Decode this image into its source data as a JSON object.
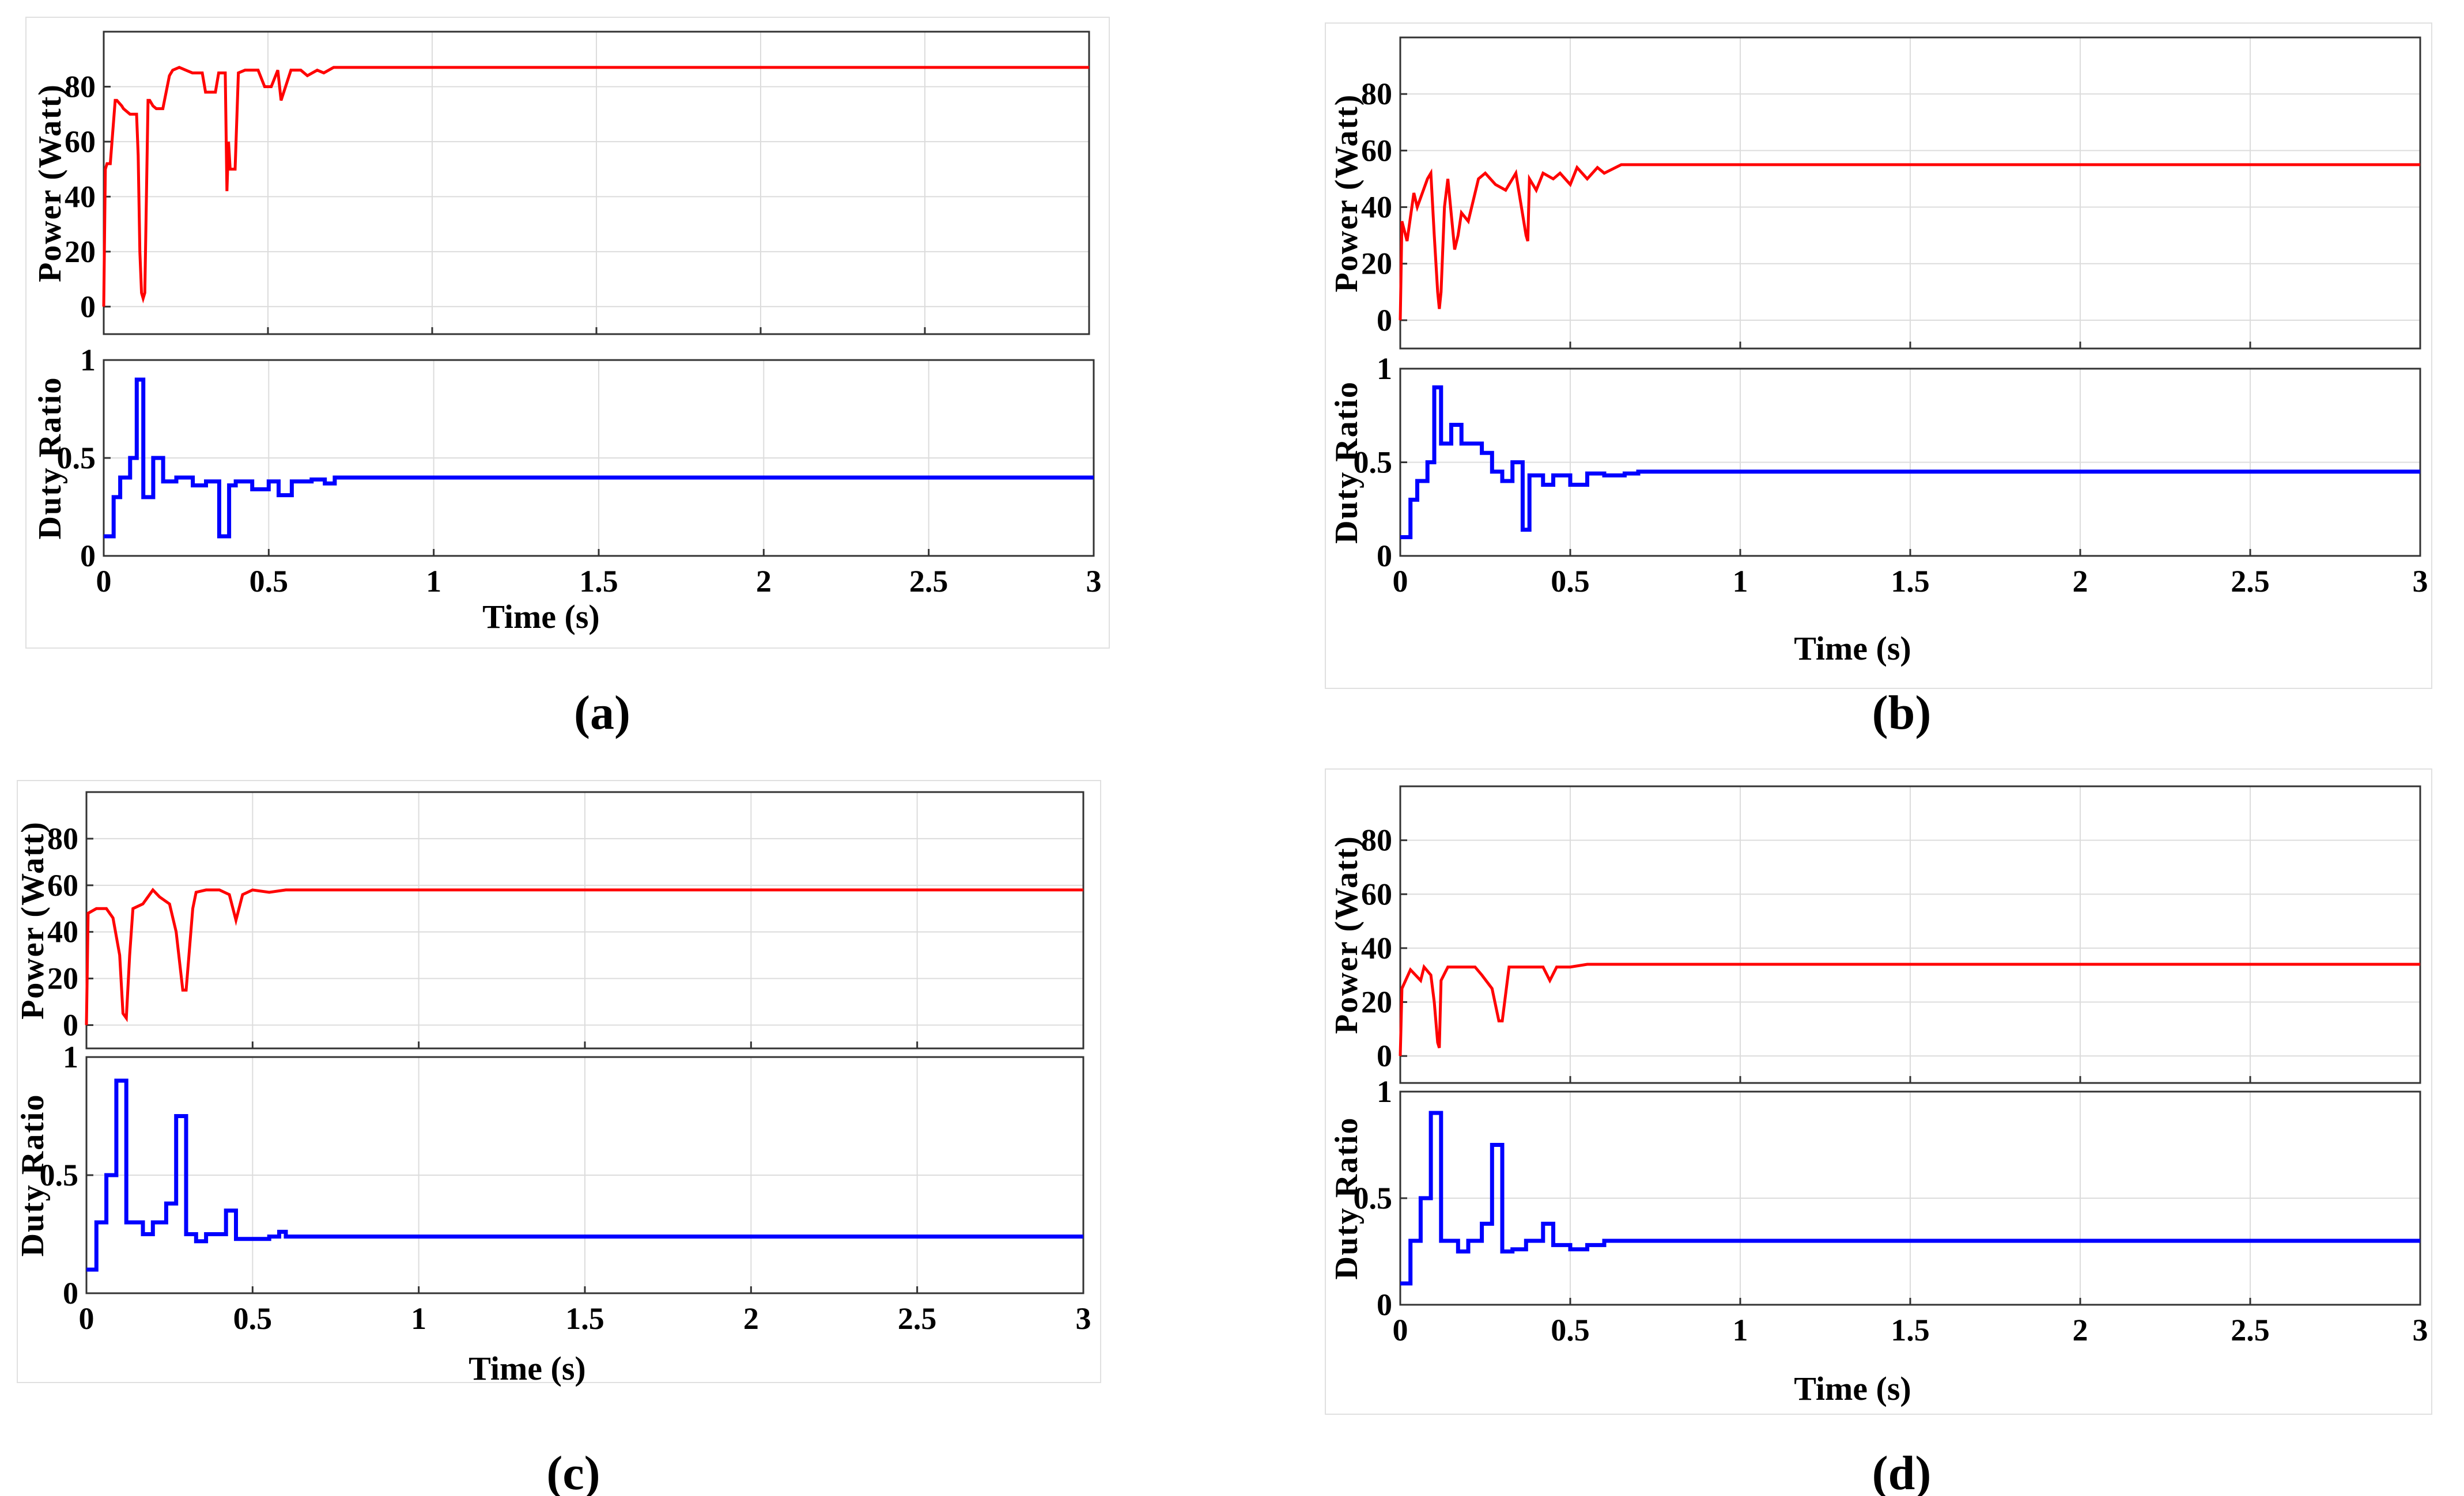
{
  "figure": {
    "captions": [
      "(a)",
      "(b)",
      "(c)",
      "(d)"
    ]
  },
  "chart_data": [
    {
      "id": "a",
      "caption": "(a)",
      "type": "line",
      "xlabel": "Time (s)",
      "xlim": [
        0,
        3
      ],
      "xticks": [
        "0",
        "0.5",
        "1",
        "1.5",
        "2",
        "2.5",
        "3"
      ],
      "power": {
        "ylabel": "Power (Watt)",
        "ylim": [
          -10,
          100
        ],
        "yticks": [
          "0",
          "20",
          "40",
          "60",
          "80"
        ],
        "color": "#ff0000",
        "series": {
          "name": "Power",
          "x": [
            0,
            0.005,
            0.01,
            0.02,
            0.035,
            0.04,
            0.055,
            0.06,
            0.08,
            0.085,
            0.1,
            0.105,
            0.11,
            0.115,
            0.12,
            0.125,
            0.13,
            0.135,
            0.14,
            0.15,
            0.16,
            0.18,
            0.2,
            0.21,
            0.23,
            0.25,
            0.27,
            0.3,
            0.31,
            0.34,
            0.35,
            0.37,
            0.375,
            0.38,
            0.385,
            0.4,
            0.41,
            0.43,
            0.45,
            0.47,
            0.49,
            0.51,
            0.53,
            0.54,
            0.57,
            0.6,
            0.62,
            0.65,
            0.67,
            0.7,
            3
          ],
          "y": [
            0,
            50,
            52,
            52,
            75,
            75,
            73,
            72,
            70,
            70,
            70,
            55,
            20,
            5,
            3,
            5,
            40,
            75,
            75,
            73,
            72,
            72,
            84,
            86,
            87,
            86,
            85,
            85,
            78,
            78,
            85,
            85,
            42,
            60,
            50,
            50,
            85,
            86,
            86,
            86,
            80,
            80,
            86,
            75,
            86,
            86,
            84,
            86,
            85,
            87,
            87
          ]
        }
      },
      "duty": {
        "ylabel": "Duty Ratio",
        "ylim": [
          0,
          1
        ],
        "yticks": [
          "0",
          "0.5",
          "1"
        ],
        "color": "#0000ff",
        "series": {
          "name": "Duty Ratio",
          "x": [
            0,
            0.03,
            0.03,
            0.05,
            0.05,
            0.08,
            0.08,
            0.1,
            0.1,
            0.12,
            0.12,
            0.15,
            0.15,
            0.18,
            0.18,
            0.22,
            0.22,
            0.27,
            0.27,
            0.31,
            0.31,
            0.35,
            0.35,
            0.38,
            0.38,
            0.4,
            0.4,
            0.45,
            0.45,
            0.5,
            0.5,
            0.53,
            0.53,
            0.57,
            0.57,
            0.63,
            0.63,
            0.67,
            0.67,
            0.7,
            0.7,
            3
          ],
          "y": [
            0.1,
            0.1,
            0.3,
            0.3,
            0.4,
            0.4,
            0.5,
            0.5,
            0.9,
            0.9,
            0.3,
            0.3,
            0.5,
            0.5,
            0.38,
            0.38,
            0.4,
            0.4,
            0.36,
            0.36,
            0.38,
            0.38,
            0.1,
            0.1,
            0.36,
            0.36,
            0.38,
            0.38,
            0.34,
            0.34,
            0.38,
            0.38,
            0.31,
            0.31,
            0.38,
            0.38,
            0.39,
            0.39,
            0.37,
            0.37,
            0.4,
            0.4
          ]
        }
      }
    },
    {
      "id": "b",
      "caption": "(b)",
      "type": "line",
      "xlabel": "Time (s)",
      "xlim": [
        0,
        3
      ],
      "xticks": [
        "0",
        "0.5",
        "1",
        "1.5",
        "2",
        "2.5",
        "3"
      ],
      "power": {
        "ylabel": "Power (Watt)",
        "ylim": [
          -10,
          100
        ],
        "yticks": [
          "0",
          "20",
          "40",
          "60",
          "80"
        ],
        "color": "#ff0000",
        "series": {
          "name": "Power",
          "x": [
            0,
            0.005,
            0.02,
            0.04,
            0.05,
            0.08,
            0.09,
            0.1,
            0.11,
            0.115,
            0.12,
            0.13,
            0.14,
            0.16,
            0.17,
            0.18,
            0.2,
            0.23,
            0.25,
            0.28,
            0.31,
            0.33,
            0.34,
            0.37,
            0.375,
            0.38,
            0.4,
            0.42,
            0.45,
            0.47,
            0.5,
            0.52,
            0.55,
            0.58,
            0.6,
            0.65,
            0.7,
            3
          ],
          "y": [
            0,
            35,
            28,
            45,
            40,
            50,
            52,
            30,
            10,
            4,
            10,
            40,
            50,
            25,
            30,
            38,
            35,
            50,
            52,
            48,
            46,
            50,
            52,
            30,
            28,
            50,
            46,
            52,
            50,
            52,
            48,
            54,
            50,
            54,
            52,
            55,
            55,
            55
          ]
        }
      },
      "duty": {
        "ylabel": "Duty Ratio",
        "ylim": [
          0,
          1
        ],
        "yticks": [
          "0",
          "0.5",
          "1"
        ],
        "color": "#0000ff",
        "series": {
          "name": "Duty Ratio",
          "x": [
            0,
            0.03,
            0.03,
            0.05,
            0.05,
            0.08,
            0.08,
            0.1,
            0.1,
            0.12,
            0.12,
            0.15,
            0.15,
            0.18,
            0.18,
            0.24,
            0.24,
            0.27,
            0.27,
            0.3,
            0.3,
            0.33,
            0.33,
            0.36,
            0.36,
            0.38,
            0.38,
            0.42,
            0.42,
            0.45,
            0.45,
            0.5,
            0.5,
            0.55,
            0.55,
            0.6,
            0.6,
            0.66,
            0.66,
            0.7,
            0.7,
            3
          ],
          "y": [
            0.1,
            0.1,
            0.3,
            0.3,
            0.4,
            0.4,
            0.5,
            0.5,
            0.9,
            0.9,
            0.6,
            0.6,
            0.7,
            0.7,
            0.6,
            0.6,
            0.55,
            0.55,
            0.45,
            0.45,
            0.4,
            0.4,
            0.5,
            0.5,
            0.14,
            0.14,
            0.43,
            0.43,
            0.38,
            0.38,
            0.43,
            0.43,
            0.38,
            0.38,
            0.44,
            0.44,
            0.43,
            0.43,
            0.44,
            0.44,
            0.45,
            0.45
          ]
        }
      }
    },
    {
      "id": "c",
      "caption": "(c)",
      "type": "line",
      "xlabel": "Time (s)",
      "xlim": [
        0,
        3
      ],
      "xticks": [
        "0",
        "0.5",
        "1",
        "1.5",
        "2",
        "2.5",
        "3"
      ],
      "power": {
        "ylabel": "Power (Watt)",
        "ylim": [
          -10,
          100
        ],
        "yticks": [
          "0",
          "20",
          "40",
          "60",
          "80"
        ],
        "color": "#ff0000",
        "series": {
          "name": "Power",
          "x": [
            0,
            0.005,
            0.03,
            0.06,
            0.08,
            0.1,
            0.11,
            0.12,
            0.13,
            0.14,
            0.17,
            0.2,
            0.22,
            0.25,
            0.27,
            0.29,
            0.3,
            0.32,
            0.33,
            0.36,
            0.4,
            0.43,
            0.45,
            0.47,
            0.5,
            0.55,
            0.6,
            3
          ],
          "y": [
            0,
            48,
            50,
            50,
            46,
            30,
            5,
            3,
            30,
            50,
            52,
            58,
            55,
            52,
            40,
            15,
            15,
            50,
            57,
            58,
            58,
            56,
            45,
            56,
            58,
            57,
            58,
            58
          ]
        }
      },
      "duty": {
        "ylabel": "Duty Ratio",
        "ylim": [
          0,
          1
        ],
        "yticks": [
          "0",
          "0.5",
          "1"
        ],
        "color": "#0000ff",
        "series": {
          "name": "Duty Ratio",
          "x": [
            0,
            0.03,
            0.03,
            0.06,
            0.06,
            0.09,
            0.09,
            0.12,
            0.12,
            0.17,
            0.17,
            0.2,
            0.2,
            0.24,
            0.24,
            0.27,
            0.27,
            0.3,
            0.3,
            0.33,
            0.33,
            0.36,
            0.36,
            0.42,
            0.42,
            0.45,
            0.45,
            0.55,
            0.55,
            0.58,
            0.58,
            0.6,
            0.6,
            3
          ],
          "y": [
            0.1,
            0.1,
            0.3,
            0.3,
            0.5,
            0.5,
            0.9,
            0.9,
            0.3,
            0.3,
            0.25,
            0.25,
            0.3,
            0.3,
            0.38,
            0.38,
            0.75,
            0.75,
            0.25,
            0.25,
            0.22,
            0.22,
            0.25,
            0.25,
            0.35,
            0.35,
            0.23,
            0.23,
            0.24,
            0.24,
            0.26,
            0.26,
            0.24,
            0.24
          ]
        }
      }
    },
    {
      "id": "d",
      "caption": "(d)",
      "type": "line",
      "xlabel": "Time (s)",
      "xlim": [
        0,
        3
      ],
      "xticks": [
        "0",
        "0.5",
        "1",
        "1.5",
        "2",
        "2.5",
        "3"
      ],
      "power": {
        "ylabel": "Power (Watt)",
        "ylim": [
          -10,
          100
        ],
        "yticks": [
          "0",
          "20",
          "40",
          "60",
          "80"
        ],
        "color": "#ff0000",
        "series": {
          "name": "Power",
          "x": [
            0,
            0.005,
            0.03,
            0.06,
            0.07,
            0.09,
            0.1,
            0.11,
            0.115,
            0.12,
            0.14,
            0.18,
            0.22,
            0.24,
            0.27,
            0.29,
            0.3,
            0.32,
            0.35,
            0.42,
            0.44,
            0.46,
            0.5,
            0.55,
            0.6,
            3
          ],
          "y": [
            0,
            25,
            32,
            28,
            33,
            30,
            20,
            5,
            3,
            28,
            33,
            33,
            33,
            30,
            25,
            13,
            13,
            33,
            33,
            33,
            28,
            33,
            33,
            34,
            34,
            34
          ]
        }
      },
      "duty": {
        "ylabel": "Duty Ratio",
        "ylim": [
          0,
          1
        ],
        "yticks": [
          "0",
          "0.5",
          "1"
        ],
        "color": "#0000ff",
        "series": {
          "name": "Duty Ratio",
          "x": [
            0,
            0.03,
            0.03,
            0.06,
            0.06,
            0.09,
            0.09,
            0.12,
            0.12,
            0.17,
            0.17,
            0.2,
            0.2,
            0.24,
            0.24,
            0.27,
            0.27,
            0.3,
            0.3,
            0.33,
            0.33,
            0.37,
            0.37,
            0.42,
            0.42,
            0.45,
            0.45,
            0.5,
            0.5,
            0.55,
            0.55,
            0.6,
            0.6,
            3
          ],
          "y": [
            0.1,
            0.1,
            0.3,
            0.3,
            0.5,
            0.5,
            0.9,
            0.9,
            0.3,
            0.3,
            0.25,
            0.25,
            0.3,
            0.3,
            0.38,
            0.38,
            0.75,
            0.75,
            0.25,
            0.25,
            0.26,
            0.26,
            0.3,
            0.3,
            0.38,
            0.38,
            0.28,
            0.28,
            0.26,
            0.26,
            0.28,
            0.28,
            0.3,
            0.3
          ]
        }
      }
    }
  ]
}
